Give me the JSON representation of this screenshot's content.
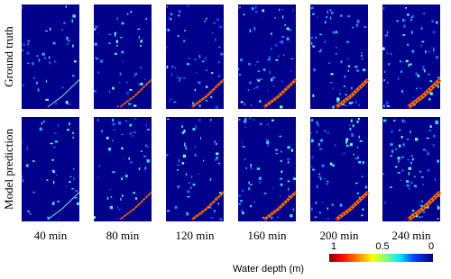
{
  "rows": [
    "Ground truth",
    "Model prediction"
  ],
  "columns": [
    "40 min",
    "80 min",
    "120 min",
    "160 min",
    "200 min",
    "240 min"
  ],
  "colorbar": {
    "label": "Water depth (m)",
    "ticks": [
      "1",
      "0.5",
      "0"
    ]
  }
}
